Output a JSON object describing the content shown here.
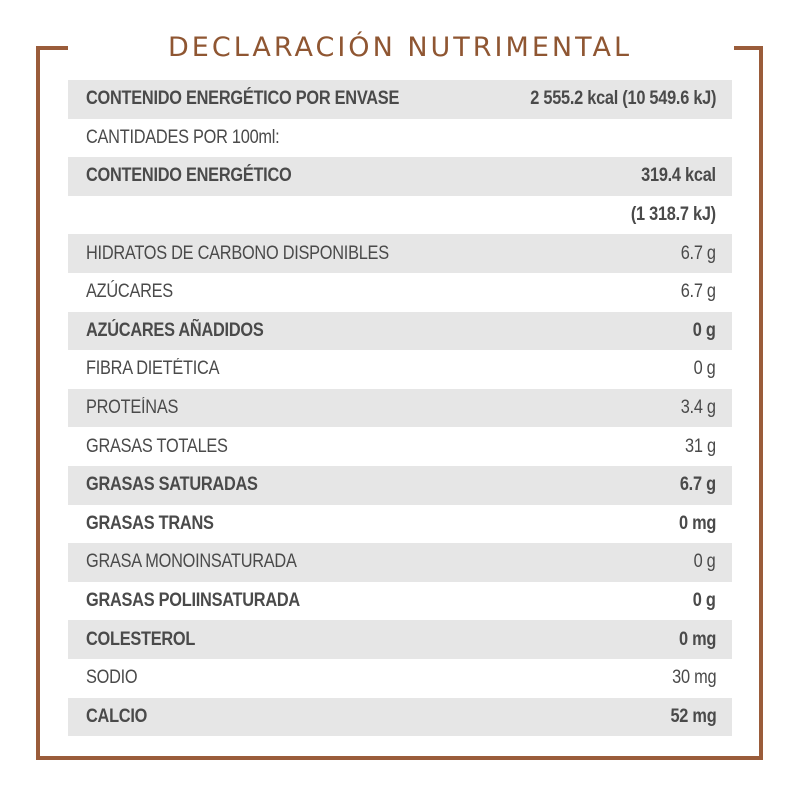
{
  "title": "DECLARACIÓN NUTRIMENTAL",
  "colors": {
    "accent": "#9a5c3a",
    "title": "#8f5632",
    "row_shade": "#e6e6e6",
    "text": "#4a4a4a"
  },
  "rows": [
    {
      "label": "CONTENIDO ENERGÉTICO POR ENVASE",
      "value": "2 555.2 kcal (10 549.6 kJ)"
    },
    {
      "label": "CANTIDADES POR 100ml:",
      "value": ""
    },
    {
      "label": "CONTENIDO ENERGÉTICO",
      "value": "319.4 kcal"
    },
    {
      "label": "",
      "value": "(1 318.7 kJ)"
    },
    {
      "label": "HIDRATOS DE CARBONO DISPONIBLES",
      "value": "6.7 g"
    },
    {
      "label": "AZÚCARES",
      "value": "6.7 g"
    },
    {
      "label": "AZÚCARES AÑADIDOS",
      "value": "0 g"
    },
    {
      "label": "FIBRA DIETÉTICA",
      "value": "0 g"
    },
    {
      "label": "PROTEÍNAS",
      "value": "3.4 g"
    },
    {
      "label": "GRASAS TOTALES",
      "value": "31 g"
    },
    {
      "label": "GRASAS SATURADAS",
      "value": "6.7 g"
    },
    {
      "label": "GRASAS TRANS",
      "value": "0 mg"
    },
    {
      "label": "GRASA MONOINSATURADA",
      "value": "0 g"
    },
    {
      "label": "GRASAS POLIINSATURADA",
      "value": "0 g"
    },
    {
      "label": "COLESTEROL",
      "value": "0 mg"
    },
    {
      "label": "SODIO",
      "value": "30 mg"
    },
    {
      "label": "CALCIO",
      "value": "52 mg"
    }
  ]
}
